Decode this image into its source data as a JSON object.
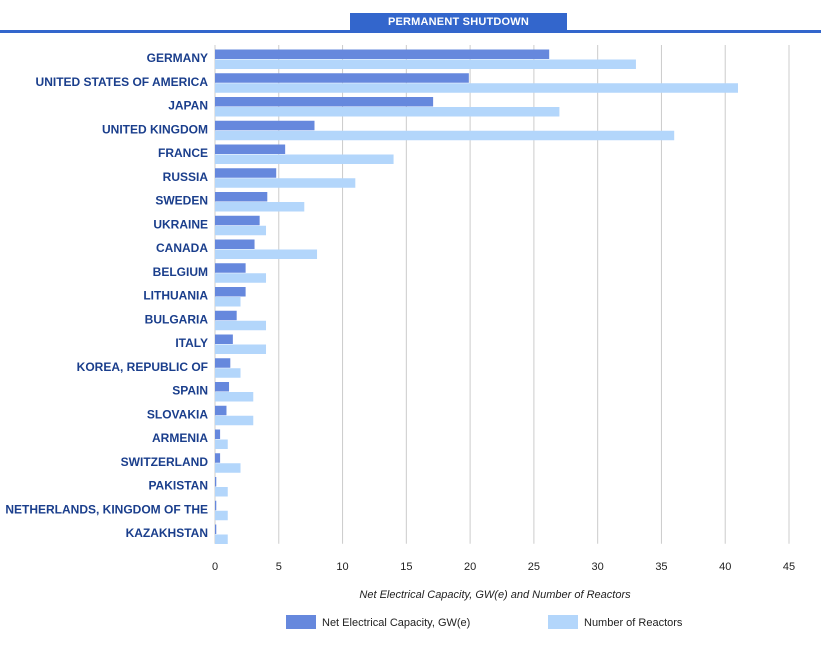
{
  "header": {
    "tab_title": "PERMANENT SHUTDOWN"
  },
  "colors": {
    "tab": "#3366cc",
    "capacity": "#6688dd",
    "reactors": "#b3d6fb",
    "country_label": "#1a3e8c",
    "grid": "#cccccc",
    "axis_text": "#222222"
  },
  "chart_data": {
    "type": "bar",
    "orientation": "horizontal",
    "categories": [
      "GERMANY",
      "UNITED STATES OF AMERICA",
      "JAPAN",
      "UNITED KINGDOM",
      "FRANCE",
      "RUSSIA",
      "SWEDEN",
      "UKRAINE",
      "CANADA",
      "BELGIUM",
      "LITHUANIA",
      "BULGARIA",
      "ITALY",
      "KOREA, REPUBLIC OF",
      "SPAIN",
      "SLOVAKIA",
      "ARMENIA",
      "SWITZERLAND",
      "PAKISTAN",
      "NETHERLANDS, KINGDOM OF THE",
      "KAZAKHSTAN"
    ],
    "series": [
      {
        "name": "Net Electrical Capacity, GW(e)",
        "values": [
          26.2,
          19.9,
          17.1,
          7.8,
          5.5,
          4.8,
          4.1,
          3.5,
          3.1,
          2.4,
          2.4,
          1.7,
          1.4,
          1.2,
          1.1,
          0.9,
          0.4,
          0.4,
          0.1,
          0.1,
          0.1
        ]
      },
      {
        "name": "Number of Reactors",
        "values": [
          33,
          41,
          27,
          36,
          14,
          11,
          7,
          4,
          8,
          4,
          2,
          4,
          4,
          2,
          3,
          3,
          1,
          2,
          1,
          1,
          1
        ]
      }
    ],
    "xlabel": "Net Electrical Capacity, GW(e) and Number of Reactors",
    "xlim": [
      0,
      45
    ],
    "xticks": [
      "0",
      "5",
      "10",
      "15",
      "20",
      "25",
      "30",
      "35",
      "40",
      "45"
    ],
    "grid": true,
    "legend_position": "bottom"
  }
}
